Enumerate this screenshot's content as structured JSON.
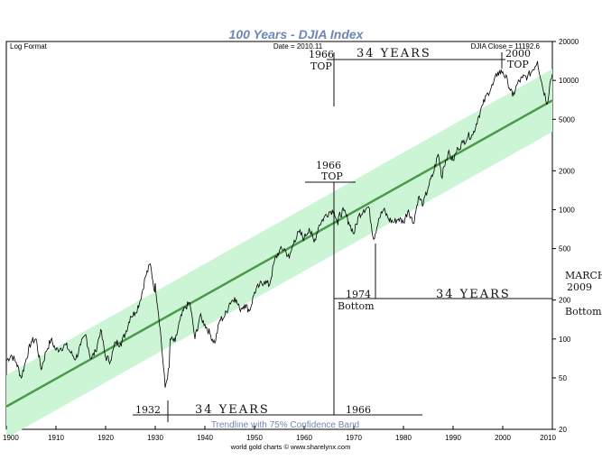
{
  "chart_data": {
    "type": "line",
    "title": "100 Years - DJIA Index",
    "scale_label": "Log Format",
    "date_label": "Date = 2010.11",
    "close_label": "DJIA Close = 11192.6",
    "x_ticks": [
      "1900",
      "1910",
      "1920",
      "1930",
      "1940",
      "1950",
      "1960",
      "1970",
      "1980",
      "1990",
      "2000",
      "2010"
    ],
    "xlim": [
      1900,
      2010
    ],
    "ylim": [
      20,
      20000
    ],
    "y_scale": "log",
    "y_ticks": [
      {
        "value": 20000,
        "label": "20000"
      },
      {
        "value": 10000,
        "label": "10000"
      },
      {
        "value": 5000,
        "label": "5000"
      },
      {
        "value": 2000,
        "label": "2000"
      },
      {
        "value": 1000,
        "label": "1000"
      },
      {
        "value": 500,
        "label": "500"
      },
      {
        "value": 200,
        "label": "200"
      },
      {
        "value": 100,
        "label": "100"
      },
      {
        "value": 50,
        "label": "50"
      },
      {
        "value": 20,
        "label": "20"
      }
    ],
    "series": [
      {
        "name": "DJIA",
        "color": "#000000",
        "points": [
          [
            1900,
            68
          ],
          [
            1901,
            75
          ],
          [
            1902,
            66
          ],
          [
            1903,
            50
          ],
          [
            1904,
            70
          ],
          [
            1905,
            95
          ],
          [
            1906,
            100
          ],
          [
            1907,
            58
          ],
          [
            1908,
            80
          ],
          [
            1909,
            99
          ],
          [
            1910,
            82
          ],
          [
            1911,
            85
          ],
          [
            1912,
            90
          ],
          [
            1913,
            78
          ],
          [
            1914,
            70
          ],
          [
            1915,
            90
          ],
          [
            1916,
            108
          ],
          [
            1917,
            70
          ],
          [
            1918,
            80
          ],
          [
            1919,
            118
          ],
          [
            1920,
            72
          ],
          [
            1921,
            68
          ],
          [
            1922,
            95
          ],
          [
            1923,
            92
          ],
          [
            1924,
            110
          ],
          [
            1925,
            150
          ],
          [
            1926,
            160
          ],
          [
            1927,
            200
          ],
          [
            1928,
            300
          ],
          [
            1929,
            381
          ],
          [
            1929.9,
            230
          ],
          [
            1930,
            270
          ],
          [
            1931,
            120
          ],
          [
            1932,
            42
          ],
          [
            1932.8,
            60
          ],
          [
            1933,
            100
          ],
          [
            1934,
            95
          ],
          [
            1935,
            140
          ],
          [
            1936,
            175
          ],
          [
            1937,
            190
          ],
          [
            1938,
            100
          ],
          [
            1939,
            150
          ],
          [
            1940,
            130
          ],
          [
            1941,
            110
          ],
          [
            1942,
            93
          ],
          [
            1943,
            140
          ],
          [
            1944,
            150
          ],
          [
            1945,
            190
          ],
          [
            1946,
            210
          ],
          [
            1947,
            170
          ],
          [
            1948,
            185
          ],
          [
            1949,
            165
          ],
          [
            1950,
            230
          ],
          [
            1951,
            260
          ],
          [
            1952,
            280
          ],
          [
            1953,
            260
          ],
          [
            1954,
            400
          ],
          [
            1955,
            480
          ],
          [
            1956,
            500
          ],
          [
            1957,
            420
          ],
          [
            1958,
            580
          ],
          [
            1959,
            670
          ],
          [
            1960,
            600
          ],
          [
            1961,
            720
          ],
          [
            1962,
            560
          ],
          [
            1963,
            760
          ],
          [
            1964,
            870
          ],
          [
            1965,
            960
          ],
          [
            1966,
            995
          ],
          [
            1966.8,
            760
          ],
          [
            1967,
            900
          ],
          [
            1968,
            980
          ],
          [
            1969,
            800
          ],
          [
            1970,
            650
          ],
          [
            1971,
            900
          ],
          [
            1972,
            1000
          ],
          [
            1973,
            1050
          ],
          [
            1974,
            590
          ],
          [
            1975,
            850
          ],
          [
            1976,
            1000
          ],
          [
            1977,
            850
          ],
          [
            1978,
            800
          ],
          [
            1979,
            850
          ],
          [
            1980,
            800
          ],
          [
            1981,
            1000
          ],
          [
            1982,
            780
          ],
          [
            1983,
            1250
          ],
          [
            1984,
            1100
          ],
          [
            1985,
            1500
          ],
          [
            1986,
            1900
          ],
          [
            1987,
            2700
          ],
          [
            1987.8,
            1750
          ],
          [
            1988,
            2100
          ],
          [
            1989,
            2750
          ],
          [
            1990,
            2400
          ],
          [
            1991,
            3000
          ],
          [
            1992,
            3300
          ],
          [
            1993,
            3700
          ],
          [
            1994,
            3800
          ],
          [
            1995,
            5100
          ],
          [
            1996,
            6500
          ],
          [
            1997,
            8000
          ],
          [
            1998,
            9200
          ],
          [
            1999,
            11500
          ],
          [
            2000,
            11700
          ],
          [
            2001,
            9800
          ],
          [
            2002,
            7500
          ],
          [
            2003,
            9500
          ],
          [
            2004,
            10500
          ],
          [
            2005,
            10700
          ],
          [
            2006,
            12000
          ],
          [
            2007,
            14100
          ],
          [
            2008,
            9000
          ],
          [
            2009,
            6600
          ],
          [
            2009.5,
            9500
          ],
          [
            2010,
            11200
          ]
        ]
      }
    ],
    "trendline": {
      "name": "Trendline with 75% Confidence Band",
      "color": "#4a9a4a",
      "band_color": "#ccf5d6",
      "start": [
        1900,
        30
      ],
      "end": [
        2010,
        7000
      ],
      "band_factor": 1.75
    },
    "annotations": {
      "top_1966_a": "1966",
      "top_1966_b": "TOP",
      "top_years": "34 YEARS",
      "top_2000_a": "2000",
      "top_2000_b": "TOP",
      "mid_1966_a": "1966",
      "mid_1966_b": "TOP",
      "bottom_1974_a": "1974",
      "bottom_1974_b": "Bottom",
      "bottom_years": "34 YEARS",
      "march_a": "MARCH",
      "march_b": "2009",
      "march_c": "Bottom",
      "low_1932": "1932",
      "low_years": "34 YEARS",
      "low_1966": "1966"
    },
    "caption": "Trendline with 75% Confidence Band",
    "credit": "world gold charts © www.sharelynx.com"
  }
}
